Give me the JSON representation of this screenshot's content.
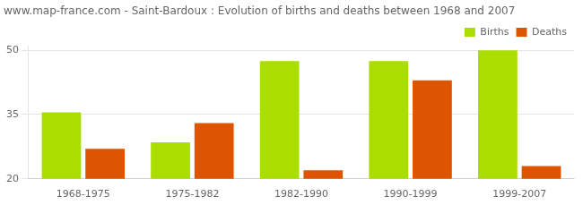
{
  "chart_data": {
    "type": "bar",
    "title": "www.map-france.com - Saint-Bardoux : Evolution of births and deaths between 1968 and 2007",
    "categories": [
      "1968-1975",
      "1975-1982",
      "1982-1990",
      "1990-1999",
      "1999-2007"
    ],
    "series": [
      {
        "name": "Births",
        "color": "#aadd00",
        "values": [
          35.5,
          28.5,
          47.5,
          47.5,
          50
        ]
      },
      {
        "name": "Deaths",
        "color": "#dd5500",
        "values": [
          27,
          33,
          22,
          43,
          23
        ]
      }
    ],
    "ylim": [
      20,
      51
    ],
    "yticks": [
      20,
      35,
      50
    ],
    "grid": true,
    "legend": "upper right"
  }
}
